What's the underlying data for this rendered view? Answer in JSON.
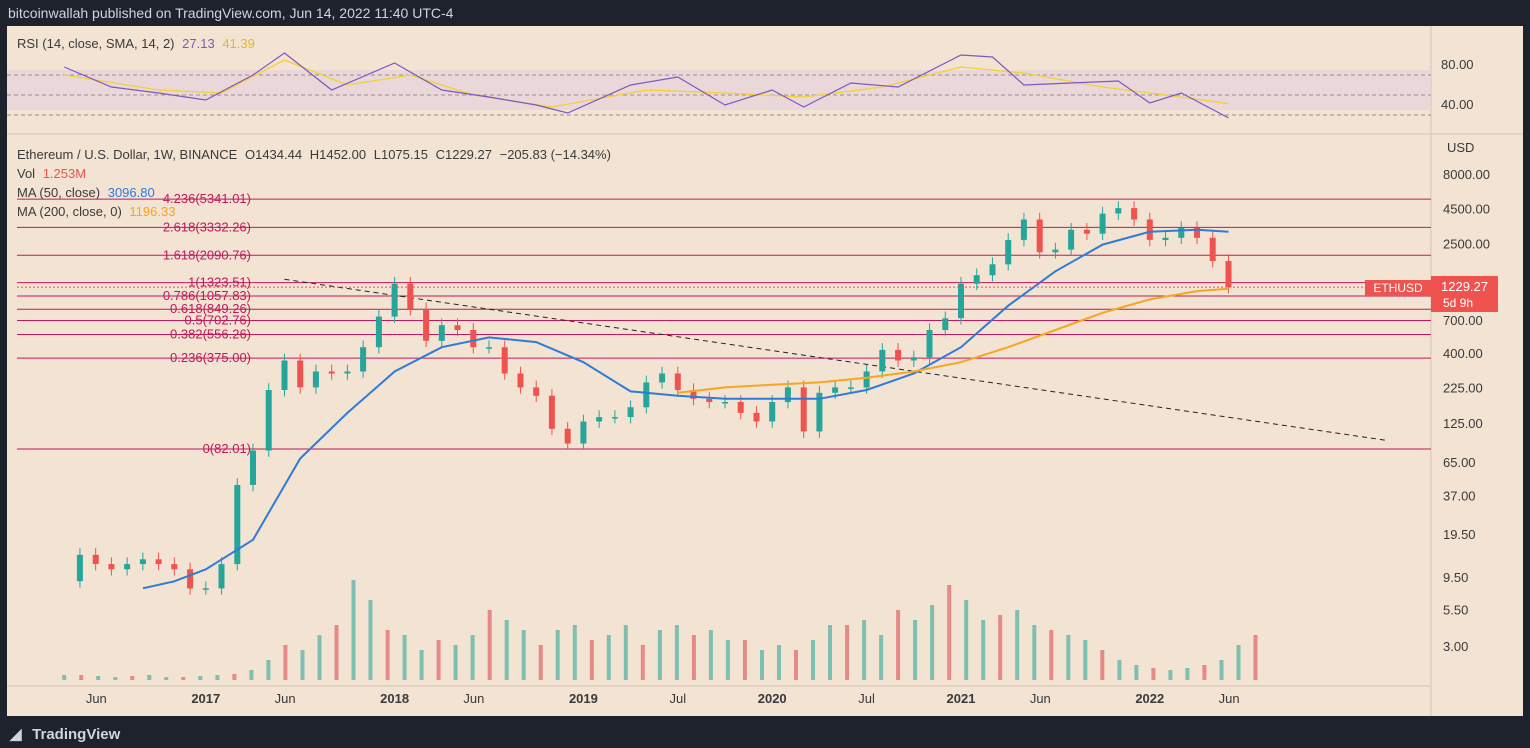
{
  "header": {
    "published": "bitcoinwallah published on TradingView.com, Jun 14, 2022 11:40 UTC-4"
  },
  "footer": {
    "brand": "TradingView"
  },
  "rsi_legend": {
    "label": "RSI (14, close, SMA, 14, 2)",
    "rsi": "27.13",
    "sma": "41.39"
  },
  "main_legend": {
    "symbol": "Ethereum / U.S. Dollar, 1W, BINANCE",
    "open": "O1434.44",
    "high": "H1452.00",
    "low": "L1075.15",
    "close": "C1229.27",
    "change": "−205.83 (−14.34%)",
    "vol_label": "Vol",
    "vol_value": "1.253M",
    "ma50_label": "MA (50, close)",
    "ma50_value": "3096.80",
    "ma200_label": "MA (200, close, 0)",
    "ma200_value": "1196.33"
  },
  "price_badge": {
    "symbol": "ETHUSD",
    "price": "1229.27",
    "countdown": "5d 9h"
  },
  "colors": {
    "background": "#f2e3d2",
    "up": "#26a69a",
    "down": "#ef5350",
    "fib": "#c2185b",
    "ma50": "#2f7bd8",
    "ma200": "#f5a623",
    "rsi": "#7e57c2",
    "rsi_sma": "#f5d130",
    "frame": "#1e222d"
  },
  "chart_data": [
    {
      "type": "line",
      "title": "RSI (14, close, SMA, 14, 2)",
      "y_ticks": [
        "80.00",
        "40.00"
      ],
      "bands": [
        70,
        50,
        30
      ],
      "series": [
        {
          "name": "RSI",
          "x": [
            "2016-04",
            "2016-07",
            "2016-10",
            "2017-01",
            "2017-04",
            "2017-06",
            "2017-09",
            "2018-01",
            "2018-04",
            "2018-07",
            "2018-10",
            "2018-12",
            "2019-04",
            "2019-07",
            "2019-10",
            "2020-01",
            "2020-03",
            "2020-06",
            "2020-09",
            "2021-01",
            "2021-03",
            "2021-05",
            "2021-08",
            "2021-11",
            "2022-01",
            "2022-03",
            "2022-06"
          ],
          "values": [
            78,
            58,
            52,
            45,
            70,
            92,
            55,
            82,
            55,
            48,
            40,
            32,
            60,
            68,
            40,
            55,
            38,
            62,
            58,
            90,
            88,
            60,
            62,
            64,
            42,
            52,
            27.13
          ]
        },
        {
          "name": "SMA",
          "x": [
            "2016-04",
            "2016-10",
            "2017-02",
            "2017-06",
            "2017-10",
            "2018-02",
            "2018-06",
            "2018-11",
            "2019-05",
            "2019-10",
            "2020-03",
            "2020-08",
            "2021-01",
            "2021-05",
            "2021-10",
            "2022-02",
            "2022-06"
          ],
          "values": [
            70,
            55,
            52,
            85,
            60,
            70,
            50,
            38,
            55,
            52,
            48,
            58,
            78,
            72,
            58,
            50,
            41.39
          ]
        }
      ]
    },
    {
      "type": "line",
      "title": "Ethereum / U.S. Dollar, 1W, BINANCE",
      "y_scale": "log",
      "y_ticks": [
        "8000.00",
        "4500.00",
        "2500.00",
        "1229.27",
        "700.00",
        "400.00",
        "225.00",
        "125.00",
        "65.00",
        "37.00",
        "19.50",
        "9.50",
        "5.50",
        "3.00"
      ],
      "x_ticks": [
        "Jun",
        "2017",
        "Jun",
        "2018",
        "Jun",
        "2019",
        "Jul",
        "2020",
        "Jul",
        "2021",
        "Jun",
        "2022",
        "Jun"
      ],
      "fib_levels": [
        {
          "label": "4.236(5341.01)",
          "value": 5341.01
        },
        {
          "label": "2.618(3332.26)",
          "value": 3332.26
        },
        {
          "label": "1.618(2090.76)",
          "value": 2090.76
        },
        {
          "label": "1(1323.51)",
          "value": 1323.51
        },
        {
          "label": "0.786(1057.83)",
          "value": 1057.83
        },
        {
          "label": "0.618(849.26)",
          "value": 849.26
        },
        {
          "label": "0.5(702.76)",
          "value": 702.76
        },
        {
          "label": "0.382(556.26)",
          "value": 556.26
        },
        {
          "label": "0.236(375.00)",
          "value": 375.0
        },
        {
          "label": "0(82.01)",
          "value": 82.01
        }
      ],
      "trendline": {
        "from": {
          "x": "2017-06",
          "y": 1400
        },
        "to": {
          "x": "2023-04",
          "y": 95
        },
        "style": "dashed"
      },
      "series": [
        {
          "name": "ETHUSD",
          "x": [
            "2016-04",
            "2016-05",
            "2016-06",
            "2016-07",
            "2016-08",
            "2016-09",
            "2016-10",
            "2016-11",
            "2016-12",
            "2017-01",
            "2017-02",
            "2017-03",
            "2017-04",
            "2017-05",
            "2017-06",
            "2017-07",
            "2017-08",
            "2017-09",
            "2017-10",
            "2017-11",
            "2017-12",
            "2018-01",
            "2018-02",
            "2018-03",
            "2018-04",
            "2018-05",
            "2018-06",
            "2018-07",
            "2018-08",
            "2018-09",
            "2018-10",
            "2018-11",
            "2018-12",
            "2019-01",
            "2019-02",
            "2019-03",
            "2019-04",
            "2019-05",
            "2019-06",
            "2019-07",
            "2019-08",
            "2019-09",
            "2019-10",
            "2019-11",
            "2019-12",
            "2020-01",
            "2020-02",
            "2020-03",
            "2020-04",
            "2020-05",
            "2020-06",
            "2020-07",
            "2020-08",
            "2020-09",
            "2020-10",
            "2020-11",
            "2020-12",
            "2021-01",
            "2021-02",
            "2021-03",
            "2021-04",
            "2021-05",
            "2021-06",
            "2021-07",
            "2021-08",
            "2021-09",
            "2021-10",
            "2021-11",
            "2021-12",
            "2022-01",
            "2022-02",
            "2022-03",
            "2022-04",
            "2022-05",
            "2022-06"
          ],
          "values": [
            9,
            14,
            12,
            11,
            12,
            13,
            12,
            11,
            8,
            8,
            12,
            45,
            80,
            220,
            360,
            230,
            300,
            290,
            300,
            450,
            750,
            1300,
            850,
            500,
            650,
            600,
            450,
            450,
            290,
            230,
            200,
            115,
            90,
            130,
            140,
            140,
            165,
            250,
            290,
            220,
            190,
            180,
            180,
            150,
            130,
            180,
            230,
            110,
            210,
            230,
            230,
            300,
            430,
            360,
            380,
            600,
            730,
            1300,
            1500,
            1800,
            2700,
            3800,
            2200,
            2300,
            3200,
            3000,
            4200,
            4600,
            3800,
            2700,
            2800,
            3300,
            2800,
            1900,
            1229.27
          ]
        },
        {
          "name": "MA (50, close)",
          "x": [
            "2016-09",
            "2016-11",
            "2017-01",
            "2017-04",
            "2017-07",
            "2017-10",
            "2018-01",
            "2018-04",
            "2018-07",
            "2018-10",
            "2019-01",
            "2019-04",
            "2019-07",
            "2019-10",
            "2020-01",
            "2020-04",
            "2020-07",
            "2020-10",
            "2021-01",
            "2021-04",
            "2021-07",
            "2021-10",
            "2022-01",
            "2022-04",
            "2022-06"
          ],
          "values": [
            8,
            9,
            11,
            18,
            70,
            150,
            300,
            450,
            530,
            490,
            350,
            215,
            200,
            190,
            190,
            190,
            220,
            290,
            450,
            900,
            1600,
            2500,
            3100,
            3200,
            3096.8
          ]
        },
        {
          "name": "MA (200, close, 0)",
          "x": [
            "2019-07",
            "2019-10",
            "2020-01",
            "2020-04",
            "2020-07",
            "2020-10",
            "2021-01",
            "2021-04",
            "2021-07",
            "2021-10",
            "2022-01",
            "2022-04",
            "2022-06"
          ],
          "values": [
            210,
            230,
            240,
            250,
            270,
            300,
            350,
            450,
            600,
            800,
            1000,
            1150,
            1196.33
          ]
        }
      ]
    },
    {
      "type": "bar",
      "title": "Vol",
      "series": [
        {
          "name": "Vol",
          "values": [
            0.05,
            0.05,
            0.04,
            0.03,
            0.04,
            0.05,
            0.03,
            0.03,
            0.04,
            0.05,
            0.06,
            0.1,
            0.2,
            0.35,
            0.3,
            0.45,
            0.55,
            1.0,
            0.8,
            0.5,
            0.45,
            0.3,
            0.4,
            0.35,
            0.45,
            0.7,
            0.6,
            0.5,
            0.35,
            0.5,
            0.55,
            0.4,
            0.45,
            0.55,
            0.35,
            0.5,
            0.55,
            0.45,
            0.5,
            0.4,
            0.4,
            0.3,
            0.35,
            0.3,
            0.4,
            0.55,
            0.55,
            0.6,
            0.45,
            0.7,
            0.6,
            0.75,
            0.95,
            0.8,
            0.6,
            0.65,
            0.7,
            0.55,
            0.5,
            0.45,
            0.4,
            0.3,
            0.2,
            0.15,
            0.12,
            0.1,
            0.12,
            0.15,
            0.2,
            0.35,
            0.45
          ]
        }
      ]
    }
  ]
}
